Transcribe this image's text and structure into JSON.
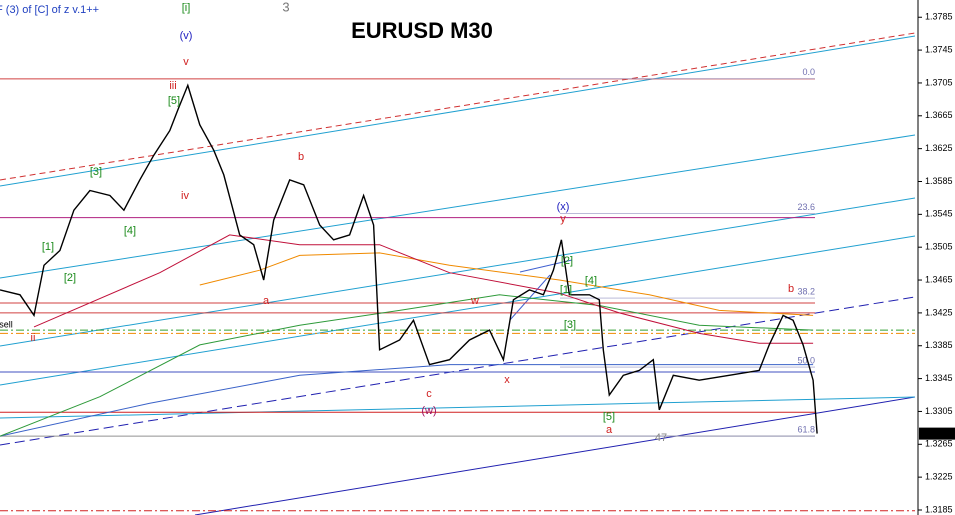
{
  "chart_data": {
    "type": "line",
    "title": "EURUSD M30",
    "header": "F (3) of [C] of z v.1++",
    "header_marks": [
      {
        "text": "[i]",
        "color": "#1a8a1a"
      },
      {
        "text": "3",
        "color": "#777777"
      }
    ],
    "xlim": [
      0,
      458
    ],
    "ylim": [
      1.31789,
      1.3806
    ],
    "yticks": [
      1.3785,
      1.3745,
      1.3705,
      1.3665,
      1.3625,
      1.3585,
      1.3545,
      1.3505,
      1.3465,
      1.3425,
      1.3385,
      1.3345,
      1.3305,
      1.3265,
      1.3225,
      1.3185
    ],
    "current_price": 1.3278,
    "series": [
      {
        "name": "EURUSD",
        "color": "#000000",
        "x": [
          0,
          10,
          17,
          22,
          30,
          37,
          45,
          55,
          62,
          70,
          77,
          85,
          89,
          94,
          100,
          107,
          112,
          120,
          127,
          132,
          137,
          145,
          152,
          160,
          167,
          175,
          182,
          187,
          190,
          200,
          207,
          215,
          225,
          235,
          245,
          252,
          257,
          265,
          272,
          277,
          281,
          285,
          295,
          300,
          302,
          305,
          312,
          320,
          327,
          330,
          337,
          350,
          365,
          380,
          385,
          392,
          397,
          402,
          407,
          409
        ],
        "values": [
          1.3453,
          1.3447,
          1.3422,
          1.3483,
          1.3501,
          1.355,
          1.3574,
          1.3568,
          1.355,
          1.3587,
          1.3617,
          1.3647,
          1.3672,
          1.3702,
          1.3654,
          1.3623,
          1.3593,
          1.352,
          1.3508,
          1.3465,
          1.3538,
          1.3587,
          1.3581,
          1.3532,
          1.3514,
          1.352,
          1.3568,
          1.3532,
          1.338,
          1.3392,
          1.3416,
          1.3362,
          1.3368,
          1.3392,
          1.3404,
          1.3368,
          1.3441,
          1.3453,
          1.3447,
          1.3477,
          1.3514,
          1.3447,
          1.3447,
          1.3441,
          1.338,
          1.3325,
          1.3349,
          1.3355,
          1.3368,
          1.3307,
          1.3349,
          1.3343,
          1.3349,
          1.3355,
          1.3386,
          1.3422,
          1.3416,
          1.3386,
          1.3343,
          1.3278
        ]
      },
      {
        "name": "MA red",
        "color": "#c0103a",
        "x": [
          17,
          80,
          115,
          150,
          190,
          225,
          280,
          310,
          350,
          380,
          407
        ],
        "values": [
          1.3408,
          1.3474,
          1.352,
          1.3508,
          1.3508,
          1.3474,
          1.3449,
          1.3425,
          1.34,
          1.3388,
          1.3388
        ]
      },
      {
        "name": "MA orange",
        "color": "#f08a00",
        "x": [
          100,
          130,
          150,
          190,
          225,
          280,
          325,
          360,
          407
        ],
        "values": [
          1.3459,
          1.3477,
          1.3495,
          1.3498,
          1.3483,
          1.3465,
          1.3447,
          1.3428,
          1.3422
        ]
      },
      {
        "name": "MA green",
        "color": "#2e9a3a",
        "x": [
          0,
          50,
          100,
          150,
          200,
          250,
          300,
          350,
          407
        ],
        "values": [
          1.3275,
          1.3323,
          1.3386,
          1.341,
          1.3428,
          1.3447,
          1.3434,
          1.341,
          1.3404
        ]
      },
      {
        "name": "MA blue",
        "color": "#3a62c8",
        "x": [
          0,
          75,
          150,
          225,
          300,
          350,
          407
        ],
        "values": [
          1.3275,
          1.3315,
          1.3349,
          1.3362,
          1.3362,
          1.3362,
          1.3362
        ]
      }
    ],
    "levels": [
      {
        "value": 1.371,
        "color": "#d04040",
        "style": "solid"
      },
      {
        "value": 1.3541,
        "color": "#b02080",
        "style": "solid"
      },
      {
        "value": 1.3437,
        "color": "#d04040",
        "style": "solid"
      },
      {
        "value": 1.3425,
        "color": "#d04040",
        "style": "solid"
      },
      {
        "value": 1.3353,
        "color": "#4050c0",
        "style": "solid"
      },
      {
        "value": 1.3304,
        "color": "#d02020",
        "style": "solid"
      },
      {
        "value": 1.3275,
        "color": "#909090",
        "style": "solid"
      },
      {
        "value": 1.3404,
        "color": "#30a030",
        "style": "dashdot"
      },
      {
        "value": 1.34,
        "color": "#f08a00",
        "style": "dashdot"
      },
      {
        "value": 1.3184,
        "color": "#d02020",
        "style": "dashdot"
      }
    ],
    "fib_levels": [
      {
        "label": "0.0",
        "value": 1.371
      },
      {
        "label": "23.6",
        "value": 1.3546
      },
      {
        "label": "38.2",
        "value": 1.3443
      },
      {
        "label": "50.0",
        "value": 1.3359
      },
      {
        "label": "61.8",
        "value": 1.3275
      }
    ],
    "annotations": [
      {
        "text": "(v)",
        "color": "#2020c0"
      },
      {
        "text": "v",
        "color": "#d02020"
      },
      {
        "text": "iii",
        "color": "#d02020"
      },
      {
        "text": "[5]",
        "color": "#1a8a1a"
      },
      {
        "text": "[3]",
        "color": "#1a8a1a"
      },
      {
        "text": "[1]",
        "color": "#1a8a1a"
      },
      {
        "text": "[2]",
        "color": "#1a8a1a"
      },
      {
        "text": "[4]",
        "color": "#1a8a1a"
      },
      {
        "text": "iv",
        "color": "#d02020"
      },
      {
        "text": "b",
        "color": "#d02020"
      },
      {
        "text": "a",
        "color": "#d02020"
      },
      {
        "text": "ii",
        "color": "#d02020"
      },
      {
        "text": "sell",
        "color": "#000000"
      },
      {
        "text": "c",
        "color": "#d02020"
      },
      {
        "text": "(w)",
        "color": "#a01060"
      },
      {
        "text": "w",
        "color": "#d02020"
      },
      {
        "text": "x",
        "color": "#d02020"
      },
      {
        "text": "(x)",
        "color": "#2020c0"
      },
      {
        "text": "y",
        "color": "#d02020"
      },
      {
        "text": "[2]",
        "color": "#1a8a1a"
      },
      {
        "text": "[1]",
        "color": "#1a8a1a"
      },
      {
        "text": "[4]",
        "color": "#1a8a1a"
      },
      {
        "text": "[3]",
        "color": "#1a8a1a"
      },
      {
        "text": "[5]",
        "color": "#1a8a1a"
      },
      {
        "text": "a",
        "color": "#d02020"
      },
      {
        "text": "b",
        "color": "#d02020"
      },
      {
        "text": "47",
        "color": "#888888"
      }
    ]
  }
}
